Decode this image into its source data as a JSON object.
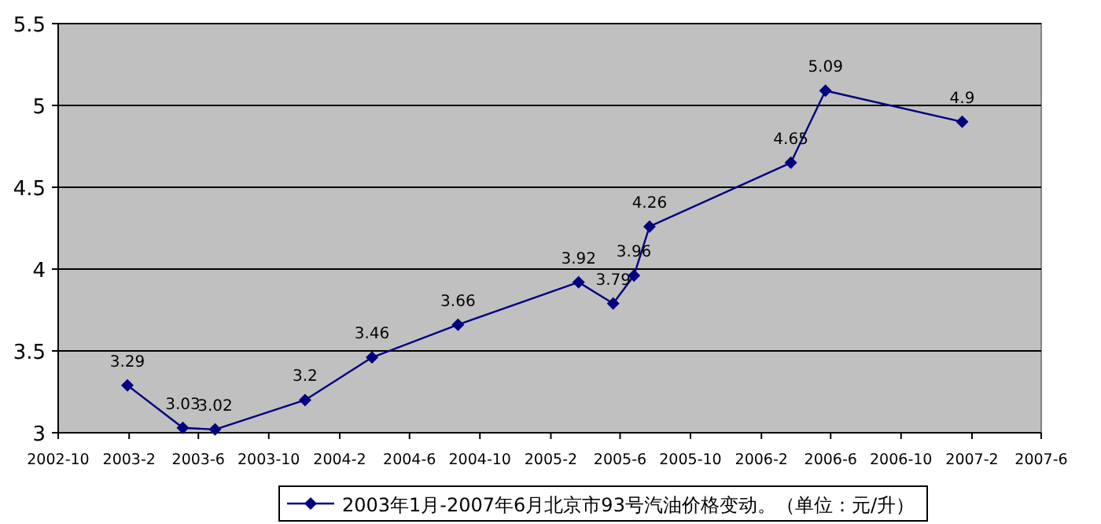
{
  "chart_data": {
    "type": "line",
    "x": [
      "2003-01-29",
      "2003-05-05",
      "2003-06-30",
      "2003-12-03",
      "2004-03-28",
      "2004-08-24",
      "2005-03-21",
      "2005-05-20",
      "2005-06-25",
      "2005-07-22",
      "2006-03-24",
      "2006-05-23",
      "2007-01-15"
    ],
    "series": [
      {
        "name": "2003年1月-2007年6月北京市93号汽油价格变动。（单位：元/升）",
        "color": "#000080",
        "values": [
          3.29,
          3.03,
          3.02,
          3.2,
          3.46,
          3.66,
          3.92,
          3.79,
          3.96,
          4.26,
          4.65,
          5.09,
          4.9
        ]
      }
    ],
    "xlim": [
      "2002-10",
      "2007-06"
    ],
    "xticks": [
      {
        "value": "2002-10",
        "label": "2002-10"
      },
      {
        "value": "2003-02",
        "label": "2003-2"
      },
      {
        "value": "2003-06",
        "label": "2003-6"
      },
      {
        "value": "2003-10",
        "label": "2003-10"
      },
      {
        "value": "2004-02",
        "label": "2004-2"
      },
      {
        "value": "2004-06",
        "label": "2004-6"
      },
      {
        "value": "2004-10",
        "label": "2004-10"
      },
      {
        "value": "2005-02",
        "label": "2005-2"
      },
      {
        "value": "2005-06",
        "label": "2005-6"
      },
      {
        "value": "2005-10",
        "label": "2005-10"
      },
      {
        "value": "2006-02",
        "label": "2006-2"
      },
      {
        "value": "2006-06",
        "label": "2006-6"
      },
      {
        "value": "2006-10",
        "label": "2006-10"
      },
      {
        "value": "2007-02",
        "label": "2007-2"
      },
      {
        "value": "2007-06",
        "label": "2007-6"
      }
    ],
    "ylim": [
      3,
      5.5
    ],
    "yticks": [
      3,
      3.5,
      4,
      4.5,
      5,
      5.5
    ],
    "grid": "y",
    "legend": "bottom",
    "marker": "diamond",
    "line_style": "solid",
    "data_labels": true
  }
}
